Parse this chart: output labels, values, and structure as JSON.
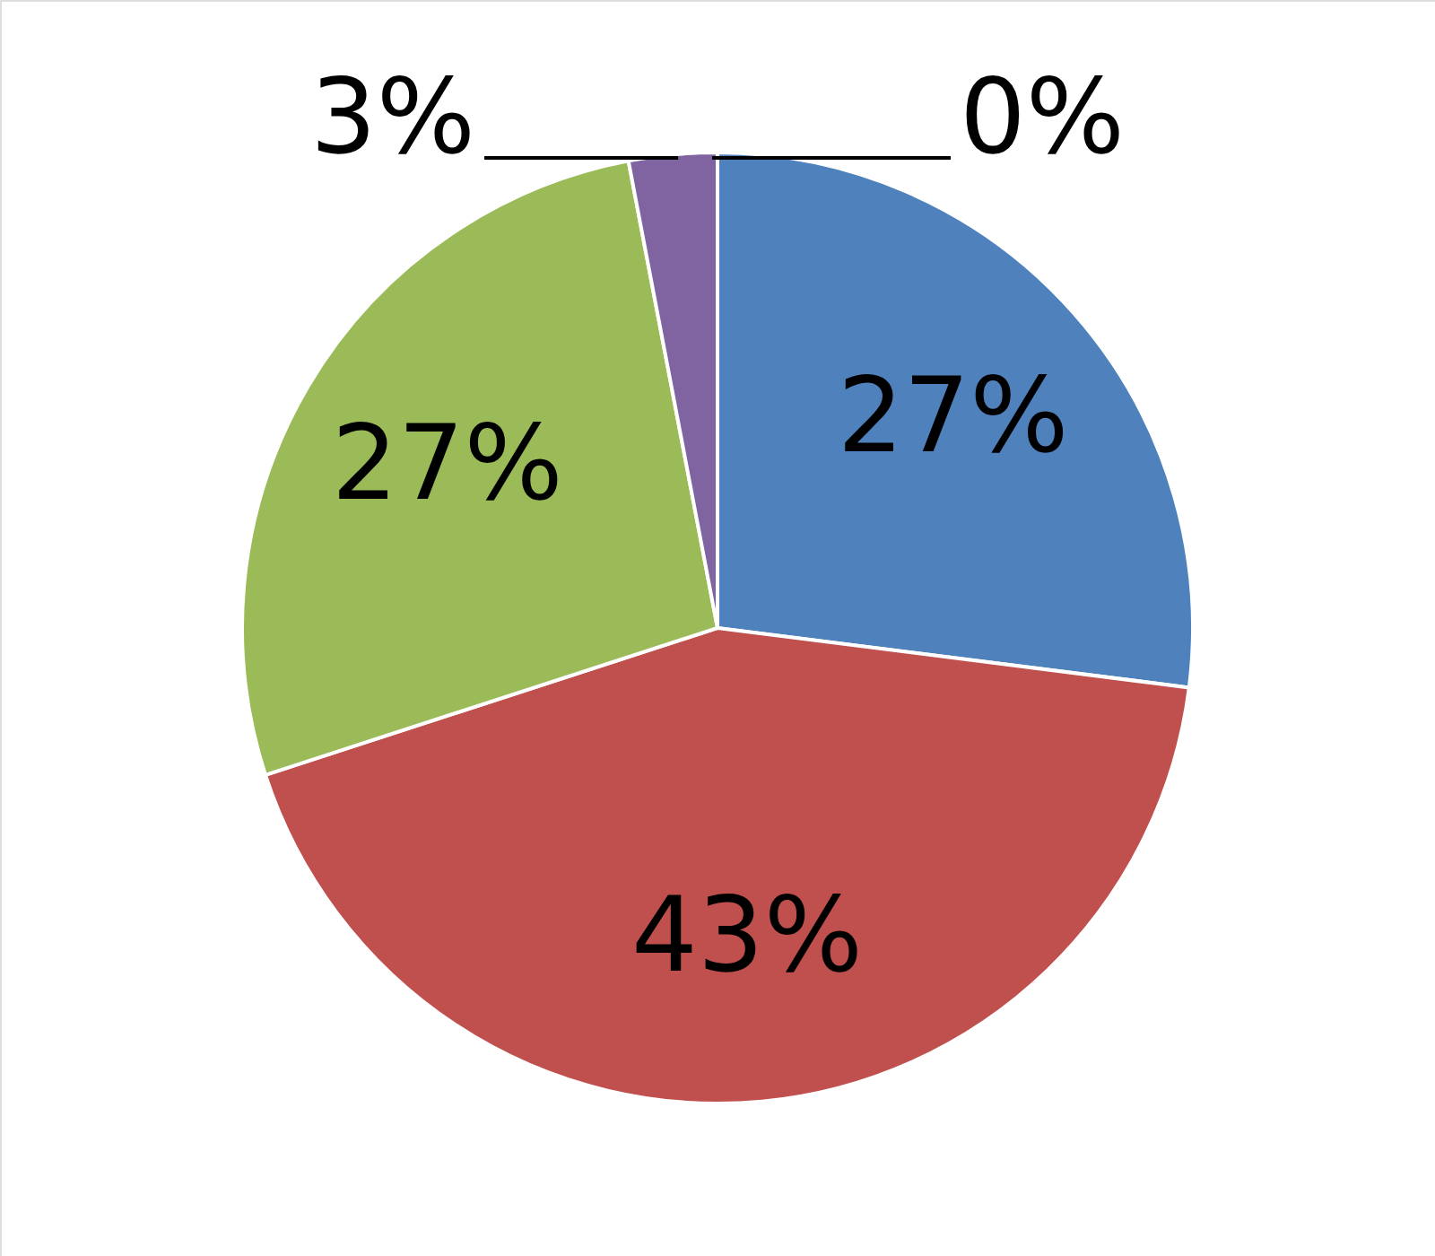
{
  "chart_data": {
    "type": "pie",
    "categories": [
      null,
      null,
      null,
      null,
      null
    ],
    "values": [
      27,
      43,
      27,
      3,
      0
    ],
    "colors": [
      "#4f81bd",
      "#c0504d",
      "#9bbb59",
      "#8064a2",
      "#4bacc6"
    ],
    "value_labels": [
      "27%",
      "43%",
      "27%",
      "3%",
      "0%"
    ]
  }
}
